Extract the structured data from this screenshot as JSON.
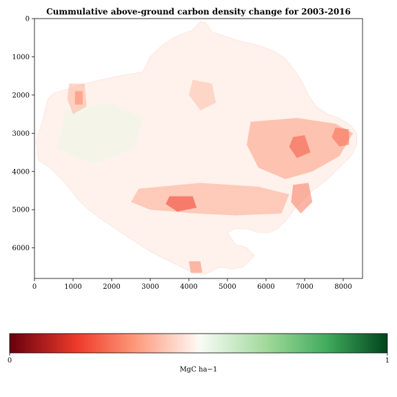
{
  "chart_data": {
    "type": "heatmap",
    "title": "Cummulative above-ground carbon density change for 2003-2016",
    "xlabel": "",
    "ylabel": "",
    "xlim": [
      0,
      8500
    ],
    "ylim": [
      6800,
      0
    ],
    "xticks": [
      0,
      1000,
      2000,
      3000,
      4000,
      5000,
      6000,
      7000,
      8000
    ],
    "yticks": [
      0,
      1000,
      2000,
      3000,
      4000,
      5000,
      6000
    ],
    "grid": false,
    "colormap": "RdGn (red = loss, green = gain)",
    "colorbar": {
      "label": "MgC ha−1",
      "ticks": [
        0,
        1
      ],
      "range": [
        0,
        1
      ],
      "stops": [
        "#67000d",
        "#ef3b2c",
        "#fc9272",
        "#fff5f0",
        "#f7fcf5",
        "#a1d99b",
        "#41ab5d",
        "#00441b"
      ]
    },
    "regions": [
      {
        "name": "domain",
        "value": 0.49,
        "polygon": [
          [
            4300,
            80
          ],
          [
            4450,
            120
          ],
          [
            4600,
            350
          ],
          [
            4900,
            450
          ],
          [
            5200,
            550
          ],
          [
            5800,
            700
          ],
          [
            6200,
            850
          ],
          [
            6500,
            1050
          ],
          [
            6700,
            1300
          ],
          [
            6900,
            1600
          ],
          [
            7100,
            2000
          ],
          [
            7300,
            2300
          ],
          [
            7600,
            2500
          ],
          [
            7900,
            2600
          ],
          [
            8200,
            2800
          ],
          [
            8350,
            3000
          ],
          [
            8350,
            3300
          ],
          [
            8200,
            3600
          ],
          [
            7900,
            3900
          ],
          [
            7600,
            4200
          ],
          [
            7200,
            4500
          ],
          [
            6800,
            4900
          ],
          [
            6500,
            5300
          ],
          [
            6300,
            5500
          ],
          [
            6100,
            5600
          ],
          [
            5800,
            5600
          ],
          [
            5500,
            5500
          ],
          [
            5200,
            5500
          ],
          [
            5000,
            5600
          ],
          [
            5200,
            5900
          ],
          [
            5500,
            6000
          ],
          [
            5700,
            6200
          ],
          [
            5400,
            6500
          ],
          [
            5100,
            6550
          ],
          [
            4800,
            6500
          ],
          [
            4600,
            6600
          ],
          [
            4400,
            6700
          ],
          [
            4100,
            6650
          ],
          [
            3800,
            6500
          ],
          [
            3400,
            6300
          ],
          [
            3000,
            6100
          ],
          [
            2700,
            5900
          ],
          [
            2400,
            5700
          ],
          [
            2100,
            5500
          ],
          [
            1800,
            5300
          ],
          [
            1400,
            5000
          ],
          [
            1100,
            4700
          ],
          [
            800,
            4300
          ],
          [
            400,
            3900
          ],
          [
            100,
            3700
          ],
          [
            50,
            3200
          ],
          [
            200,
            2700
          ],
          [
            300,
            2300
          ],
          [
            350,
            2100
          ],
          [
            500,
            1950
          ],
          [
            1000,
            1800
          ],
          [
            1500,
            1650
          ],
          [
            2200,
            1500
          ],
          [
            2800,
            1400
          ],
          [
            3000,
            1000
          ],
          [
            3300,
            700
          ],
          [
            3700,
            450
          ],
          [
            4100,
            300
          ]
        ]
      },
      {
        "name": "gain-patch-west",
        "value": 0.53,
        "polygon": [
          [
            800,
            2400
          ],
          [
            2000,
            2200
          ],
          [
            2800,
            2600
          ],
          [
            2600,
            3400
          ],
          [
            1500,
            3800
          ],
          [
            600,
            3400
          ]
        ]
      },
      {
        "name": "loss-band-south",
        "value": 0.36,
        "polygon": [
          [
            2700,
            4450
          ],
          [
            4300,
            4300
          ],
          [
            5800,
            4400
          ],
          [
            6600,
            4600
          ],
          [
            6400,
            5100
          ],
          [
            5200,
            5150
          ],
          [
            4200,
            5100
          ],
          [
            3000,
            5000
          ],
          [
            2500,
            4800
          ]
        ]
      },
      {
        "name": "loss-east",
        "value": 0.34,
        "polygon": [
          [
            5600,
            2700
          ],
          [
            6800,
            2600
          ],
          [
            7800,
            2750
          ],
          [
            8250,
            3000
          ],
          [
            7900,
            3600
          ],
          [
            7200,
            4000
          ],
          [
            6500,
            4200
          ],
          [
            5800,
            3900
          ],
          [
            5500,
            3300
          ]
        ]
      },
      {
        "name": "loss-northwest",
        "value": 0.38,
        "polygon": [
          [
            900,
            1700
          ],
          [
            1300,
            1700
          ],
          [
            1350,
            2300
          ],
          [
            1000,
            2500
          ],
          [
            850,
            2100
          ]
        ]
      },
      {
        "name": "loss-north-central",
        "value": 0.4,
        "polygon": [
          [
            4100,
            1600
          ],
          [
            4600,
            1700
          ],
          [
            4700,
            2200
          ],
          [
            4300,
            2400
          ],
          [
            4000,
            2000
          ]
        ]
      },
      {
        "name": "loss-hotspot-1",
        "value": 0.18,
        "polygon": [
          [
            3500,
            4650
          ],
          [
            4100,
            4650
          ],
          [
            4200,
            4950
          ],
          [
            3700,
            5050
          ],
          [
            3400,
            4850
          ]
        ]
      },
      {
        "name": "loss-hotspot-2",
        "value": 0.22,
        "polygon": [
          [
            6700,
            3100
          ],
          [
            7000,
            3050
          ],
          [
            7150,
            3500
          ],
          [
            6800,
            3650
          ],
          [
            6600,
            3350
          ]
        ]
      },
      {
        "name": "loss-hotspot-3",
        "value": 0.25,
        "polygon": [
          [
            7800,
            2850
          ],
          [
            8150,
            2900
          ],
          [
            8150,
            3300
          ],
          [
            7900,
            3350
          ],
          [
            7700,
            3100
          ]
        ]
      },
      {
        "name": "loss-hotspot-4",
        "value": 0.28,
        "polygon": [
          [
            6700,
            4350
          ],
          [
            7100,
            4300
          ],
          [
            7200,
            4800
          ],
          [
            6900,
            5100
          ],
          [
            6650,
            4800
          ]
        ]
      },
      {
        "name": "loss-hotspot-5",
        "value": 0.3,
        "polygon": [
          [
            4000,
            6350
          ],
          [
            4300,
            6350
          ],
          [
            4350,
            6650
          ],
          [
            4050,
            6650
          ]
        ]
      },
      {
        "name": "loss-hotspot-6",
        "value": 0.3,
        "polygon": [
          [
            1050,
            1900
          ],
          [
            1250,
            1900
          ],
          [
            1250,
            2250
          ],
          [
            1050,
            2250
          ]
        ]
      }
    ]
  }
}
